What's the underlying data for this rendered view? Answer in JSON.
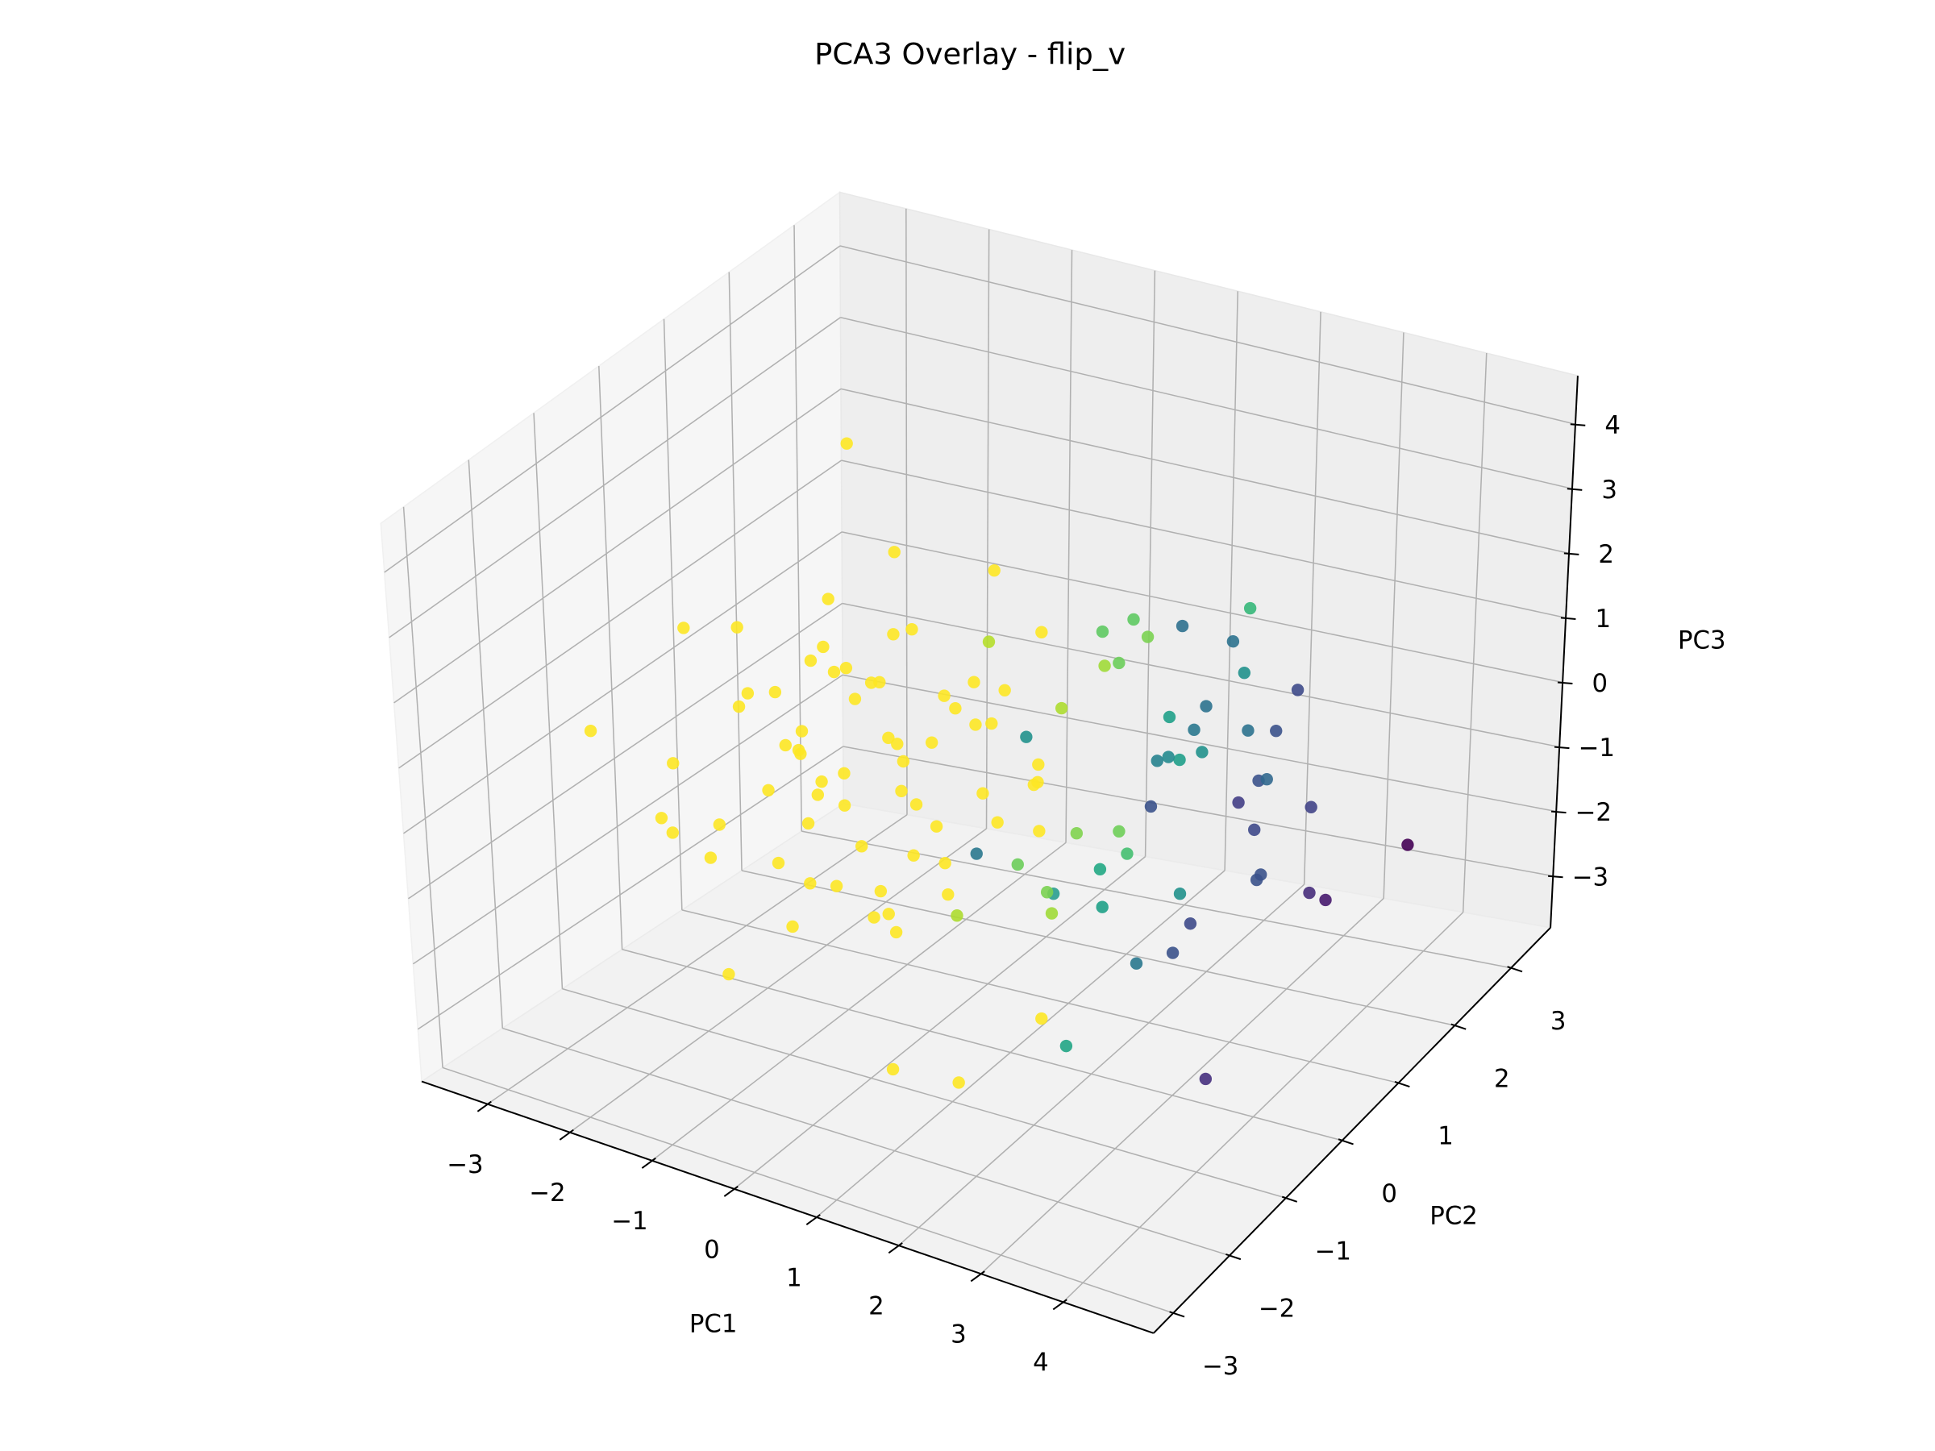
{
  "chart_data": {
    "type": "scatter3d",
    "title": "PCA3 Overlay - flip_v",
    "xlabel": "PC1",
    "ylabel": "PC2",
    "zlabel": "PC3",
    "xlim": [
      -3.8,
      5.1
    ],
    "ylim": [
      -3.35,
      3.7
    ],
    "zlim": [
      -3.8,
      4.75
    ],
    "xticks": [
      {
        "value": -3,
        "label": "−3"
      },
      {
        "value": -2,
        "label": "−2"
      },
      {
        "value": -1,
        "label": "−1"
      },
      0,
      1,
      2,
      3,
      4
    ],
    "yticks": [
      {
        "value": -3,
        "label": "−3"
      },
      {
        "value": -2,
        "label": "−2"
      },
      {
        "value": -1,
        "label": "−1"
      },
      0,
      1,
      2,
      3
    ],
    "zticks": [
      {
        "value": -3,
        "label": "−3"
      },
      {
        "value": -2,
        "label": "−2"
      },
      {
        "value": -1,
        "label": "−1"
      },
      0,
      1,
      2,
      3,
      4
    ],
    "grid": true,
    "x": [
      -3.3,
      -1.5,
      1.0,
      1.8,
      -1.35,
      -3.25,
      -2.9,
      -1.1,
      0.1,
      2.1,
      -0.5,
      -1.2,
      -0.9,
      0.2,
      -1.6,
      -0.3,
      -1.0,
      0.5,
      -2.0,
      -0.7,
      -1.4,
      0.0,
      -0.2,
      -1.8,
      0.7,
      -1.1,
      -0.4,
      -2.3,
      0.3,
      -0.8,
      -1.5,
      0.9,
      -0.6,
      -1.9,
      0.1,
      -1.3,
      -0.1,
      -2.5,
      0.6,
      -0.9,
      -1.7,
      0.4,
      -0.3,
      -1.0,
      -2.1,
      1.0,
      -0.5,
      -1.2,
      0.2,
      -0.7,
      -1.6,
      -0.2,
      -2.7,
      0.8,
      -0.8,
      -1.1,
      0.0,
      -1.4,
      -0.4,
      -1.9,
      1.2,
      -0.6,
      -1.3,
      -0.1,
      -2.2,
      0.5,
      -1.0,
      -0.3,
      -1.7,
      0.3,
      4.1,
      4.1,
      3.6,
      3.8,
      3.3,
      2.7,
      2.8,
      2.9,
      2.6,
      2.5,
      2.7,
      3.0,
      1.9,
      2.1,
      2.4,
      2.6,
      2.7,
      2.3,
      2.0,
      2.4,
      2.3,
      2.2,
      2.0,
      2.1,
      2.0,
      2.0,
      3.2,
      3.2,
      2.9,
      3.0,
      2.4,
      1.75,
      2.1,
      2.2,
      1.4,
      1.8,
      1.7,
      1.5,
      1.6,
      1.2,
      2.0,
      1.9,
      1.6,
      0.7,
      0.6,
      1.1,
      0.4,
      1.8,
      1.6,
      0.5
    ],
    "y": [
      -1,
      0.8,
      -2,
      -2,
      -1.5,
      0,
      0,
      1,
      1,
      -1,
      0.3,
      -0.4,
      0.8,
      -0.5,
      0.1,
      1.2,
      -1.1,
      0.4,
      0.6,
      -0.2,
      1.0,
      -0.9,
      0.1,
      -0.6,
      0.9,
      0.4,
      -1.4,
      0.2,
      1.5,
      -0.7,
      1.4,
      -0.3,
      0.6,
      -1.0,
      0.2,
      -0.1,
      -1.8,
      0.9,
      0.0,
      1.7,
      -0.3,
      -1.2,
      0.5,
      0.0,
      -0.2,
      0.5,
      -0.6,
      1.1,
      0.9,
      -1.3,
      0.5,
      -0.2,
      -0.5,
      -0.8,
      0.3,
      -0.8,
      1.3,
      -1.5,
      0.7,
      1.2,
      0.2,
      -0.9,
      0.2,
      -0.4,
      -1.2,
      1.1,
      0.6,
      -1.1,
      0.8,
      -0.1,
      2.5,
      -1,
      1.5,
      1.5,
      1,
      2.5,
      2,
      2.5,
      2,
      1.8,
      1.8,
      1.5,
      2.5,
      2.5,
      2,
      1.8,
      2,
      1.5,
      1.5,
      1.3,
      1.3,
      1.2,
      1.1,
      1.15,
      1.3,
      1.0,
      0,
      -0.3,
      -0.5,
      0.1,
      -1,
      -0.3,
      0,
      -0.1,
      1,
      1.2,
      1.1,
      0.9,
      1.0,
      0.6,
      0.6,
      0.6,
      0.3,
      0.7,
      0,
      0,
      0.5,
      -0.4,
      -0.2,
      -0.2
    ],
    "z": [
      0.2,
      3.8,
      -2.6,
      -2.5,
      -2.4,
      -1.7,
      1.2,
      2.2,
      2.3,
      -2.2,
      -0.2,
      0.5,
      -1.1,
      -0.8,
      -0.3,
      0.4,
      -0.9,
      0.6,
      -0.7,
      1.0,
      0.2,
      -1.5,
      -0.6,
      0.8,
      -0.3,
      -1.7,
      0.1,
      0.3,
      1.1,
      -0.1,
      -0.9,
      0.2,
      1.5,
      -1.2,
      -1.9,
      1.3,
      -0.4,
      -0.2,
      0.9,
      -0.5,
      -0.6,
      -1.1,
      0.0,
      -0.8,
      1.6,
      -0.9,
      1.8,
      0.9,
      -1.3,
      -1.6,
      1.0,
      0.5,
      -0.4,
      -0.5,
      -2.2,
      0.6,
      0.3,
      -0.2,
      -1.4,
      -1.4,
      0.1,
      0.3,
      2.0,
      -2.1,
      -0.8,
      -0.8,
      0.6,
      -1.0,
      0.4,
      1.3,
      -1.75,
      -2.4,
      -1.8,
      -1.85,
      -1.3,
      0.2,
      0,
      -1.5,
      -0.8,
      -1.0,
      -1.35,
      -1.7,
      0.7,
      1.25,
      0.75,
      0.1,
      -0.75,
      0.6,
      1.7,
      0.1,
      0.4,
      0,
      0,
      0.05,
      0.5,
      -0.6,
      -1.2,
      -1.4,
      -1.5,
      -0.9,
      -2.5,
      -1.0,
      -0.75,
      -1.2,
      1.8,
      1.7,
      2.0,
      1.4,
      1.4,
      0.9,
      -1.0,
      -0.7,
      -0.6,
      0.25,
      -1.0,
      -1.0,
      1.7,
      -1.2,
      -1.1,
      -1.8
    ],
    "colors": [
      "#fde725",
      "#fde725",
      "#fde725",
      "#fde725",
      "#fde725",
      "#fde725",
      "#fde725",
      "#fde725",
      "#fde725",
      "#fde725",
      "#fde725",
      "#fde725",
      "#fde725",
      "#fde725",
      "#fde725",
      "#fde725",
      "#fde725",
      "#fde725",
      "#fde725",
      "#fde725",
      "#fde725",
      "#fde725",
      "#fde725",
      "#fde725",
      "#fde725",
      "#fde725",
      "#fde725",
      "#fde725",
      "#fde725",
      "#fde725",
      "#fde725",
      "#fde725",
      "#fde725",
      "#fde725",
      "#fde725",
      "#fde725",
      "#fde725",
      "#fde725",
      "#fde725",
      "#fde725",
      "#fde725",
      "#fde725",
      "#fde725",
      "#fde725",
      "#fde725",
      "#fde725",
      "#fde725",
      "#fde725",
      "#fde725",
      "#fde725",
      "#fde725",
      "#fde725",
      "#fde725",
      "#fde725",
      "#fde725",
      "#fde725",
      "#fde725",
      "#fde725",
      "#fde725",
      "#fde725",
      "#fde725",
      "#fde725",
      "#fde725",
      "#fde725",
      "#fde725",
      "#fde725",
      "#fde725",
      "#fde725",
      "#fde725",
      "#fde725",
      "#440154",
      "#46307e",
      "#472d7b",
      "#471a6e",
      "#3b528b",
      "#3e4a89",
      "#3b528b",
      "#414487",
      "#3b528b",
      "#433e85",
      "#3e4989",
      "#3b528b",
      "#2c728e",
      "#35b779",
      "#21918c",
      "#2c728e",
      "#31688e",
      "#2c728e",
      "#2d708e",
      "#21918c",
      "#2a788e",
      "#1f9e89",
      "#26828e",
      "#23898e",
      "#1fa088",
      "#3b528b",
      "#3e4a89",
      "#3b528b",
      "#2a788e",
      "#21918c",
      "#21a585",
      "#2a9d8f",
      "#22a884",
      "#1fa187",
      "#5ec962",
      "#7ad151",
      "#5ec962",
      "#a0da39",
      "#6ccd5a",
      "#addc30",
      "#44bf70",
      "#6ece58",
      "#7fd34e",
      "#21918c",
      "#2a788e",
      "#6ccd5a",
      "#b5de2b",
      "#a0da39",
      "#7ad151",
      "#addc30"
    ]
  }
}
